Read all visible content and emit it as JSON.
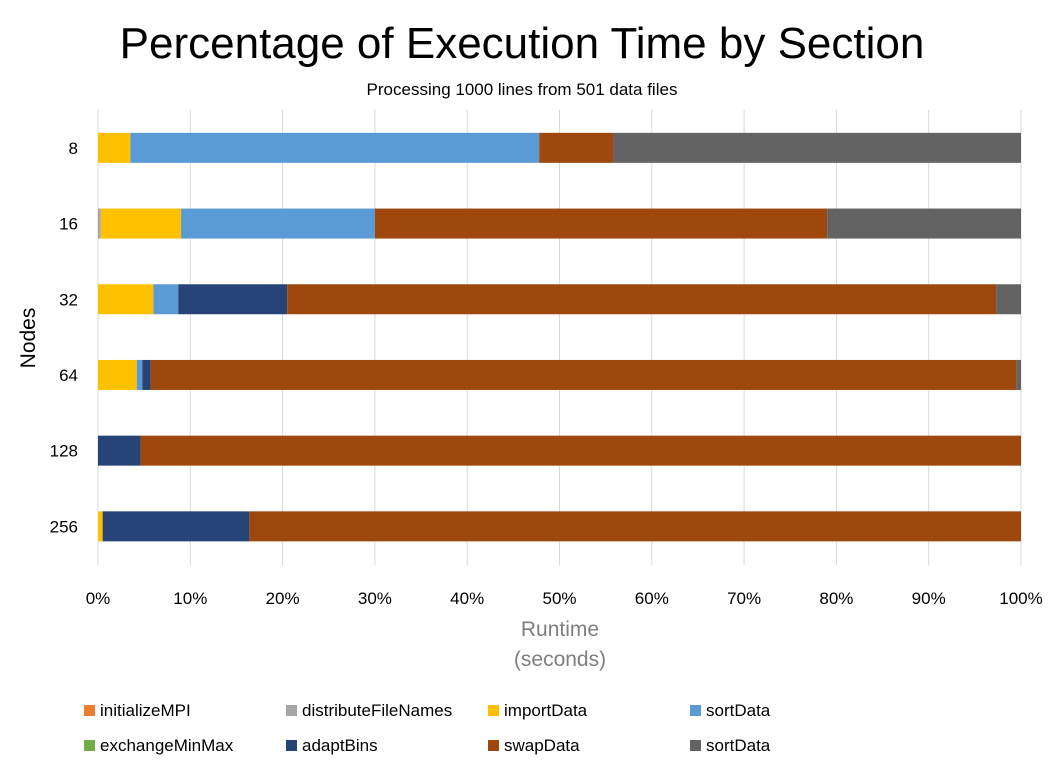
{
  "chart_data": {
    "type": "bar",
    "orientation": "horizontal",
    "stacked": true,
    "title": "Percentage of Execution Time by Section",
    "subtitle": "Processing 1000 lines from 501 data files",
    "ylabel": "Nodes",
    "xlabel_line1": "Runtime",
    "xlabel_line2": "(seconds)",
    "xlim": [
      0,
      100
    ],
    "x_ticks": [
      "0%",
      "10%",
      "20%",
      "30%",
      "40%",
      "50%",
      "60%",
      "70%",
      "80%",
      "90%",
      "100%"
    ],
    "grid": true,
    "legend_position": "bottom",
    "categories": [
      "8",
      "16",
      "32",
      "64",
      "128",
      "256"
    ],
    "series": [
      {
        "name": "initializeMPI",
        "color": "#ED7D31",
        "values": [
          0,
          0,
          0,
          0,
          0,
          0
        ]
      },
      {
        "name": "distributeFileNames",
        "color": "#A5A5A5",
        "values": [
          0,
          0.3,
          0,
          0,
          0,
          0
        ]
      },
      {
        "name": "importData",
        "color": "#FFC000",
        "values": [
          3.5,
          8.7,
          6.0,
          4.2,
          0,
          0.5
        ]
      },
      {
        "name": "sortData",
        "color": "#5B9BD5",
        "values": [
          44.3,
          21.0,
          2.7,
          0.6,
          0,
          0
        ]
      },
      {
        "name": "exchangeMinMax",
        "color": "#70AD47",
        "values": [
          0,
          0,
          0,
          0,
          0,
          0
        ]
      },
      {
        "name": "adaptBins",
        "color": "#264478",
        "values": [
          0,
          0,
          11.8,
          0.9,
          4.6,
          15.9
        ]
      },
      {
        "name": "swapData",
        "color": "#9E480E",
        "values": [
          8.0,
          49.0,
          76.8,
          93.8,
          95.4,
          83.6
        ]
      },
      {
        "name": "sortData",
        "color": "#636363",
        "values": [
          44.2,
          21.0,
          2.7,
          0.5,
          0,
          0
        ]
      }
    ]
  }
}
